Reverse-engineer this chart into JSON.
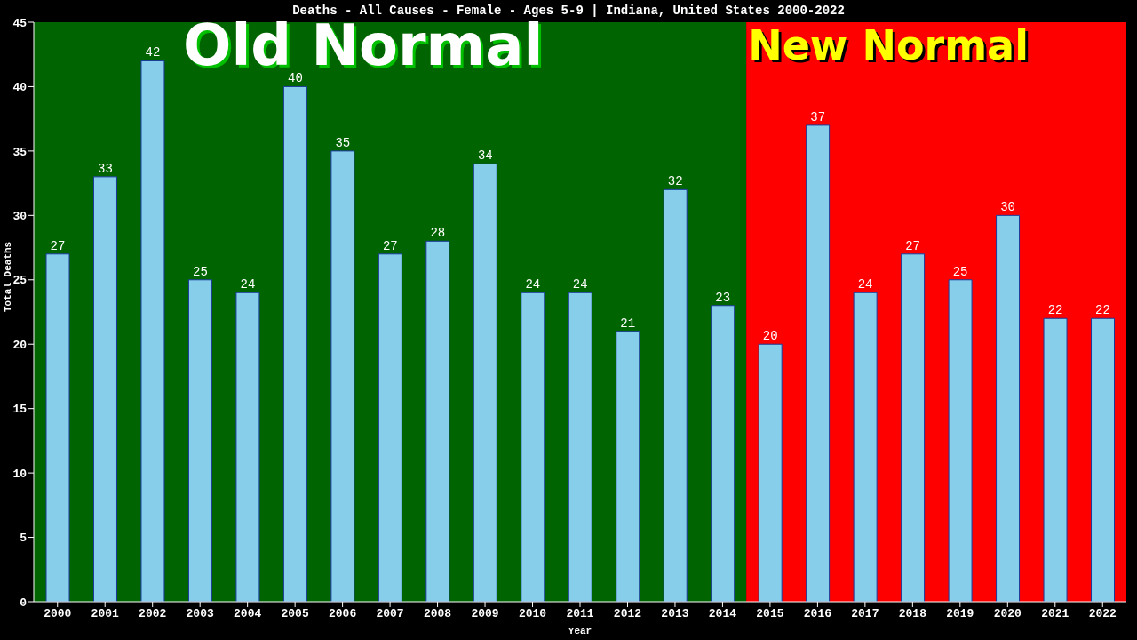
{
  "chart_data": {
    "type": "bar",
    "title": "Deaths - All Causes - Female - Ages 5-9 | Indiana, United States 2000-2022",
    "xlabel": "Year",
    "ylabel": "Total Deaths",
    "categories": [
      "2000",
      "2001",
      "2002",
      "2003",
      "2004",
      "2005",
      "2006",
      "2007",
      "2008",
      "2009",
      "2010",
      "2011",
      "2012",
      "2013",
      "2014",
      "2015",
      "2016",
      "2017",
      "2018",
      "2019",
      "2020",
      "2021",
      "2022"
    ],
    "values": [
      27,
      33,
      42,
      25,
      24,
      40,
      35,
      27,
      28,
      34,
      24,
      24,
      21,
      32,
      23,
      20,
      37,
      24,
      27,
      25,
      30,
      22,
      22
    ],
    "color": "#87ceeb",
    "ylim": [
      0,
      45
    ],
    "yticks": [
      0,
      5,
      10,
      15,
      20,
      25,
      30,
      35,
      40,
      45
    ],
    "data_labels": true,
    "bands": [
      {
        "axis": "x",
        "from": "2000",
        "to": "2014",
        "label": "Old Normal",
        "color": "#006400"
      },
      {
        "axis": "x",
        "from": "2015",
        "to": "2022",
        "label": "New Normal",
        "color": "#ff0000"
      }
    ]
  }
}
